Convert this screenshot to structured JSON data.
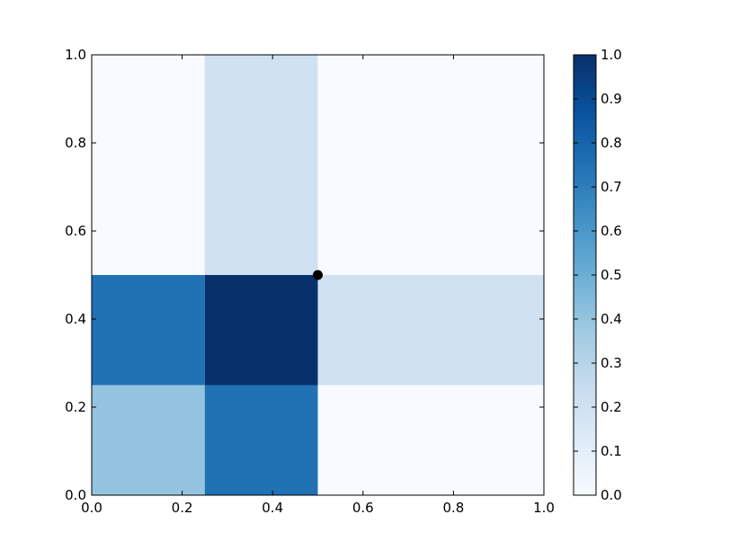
{
  "chart_data": {
    "type": "heatmap",
    "title": "",
    "xlabel": "",
    "ylabel": "",
    "xlim": [
      0.0,
      1.0
    ],
    "ylim": [
      0.0,
      1.0
    ],
    "x_edges": [
      0.0,
      0.25,
      0.5,
      1.0
    ],
    "y_edges": [
      0.0,
      0.25,
      0.5,
      1.0
    ],
    "values": [
      [
        0.4,
        0.75,
        0.0
      ],
      [
        0.75,
        1.0,
        0.2
      ],
      [
        0.0,
        0.2,
        0.0
      ]
    ],
    "colormap": "Blues",
    "colorbar": {
      "range": [
        0.0,
        1.0
      ],
      "ticks": [
        "0.0",
        "0.1",
        "0.2",
        "0.3",
        "0.4",
        "0.5",
        "0.6",
        "0.7",
        "0.8",
        "0.9",
        "1.0"
      ]
    },
    "x_ticks": [
      "0.0",
      "0.2",
      "0.4",
      "0.6",
      "0.8",
      "1.0"
    ],
    "y_ticks": [
      "0.0",
      "0.2",
      "0.4",
      "0.6",
      "0.8",
      "1.0"
    ],
    "marker": {
      "x": 0.5,
      "y": 0.5,
      "color": "#000000"
    },
    "grid": false
  }
}
